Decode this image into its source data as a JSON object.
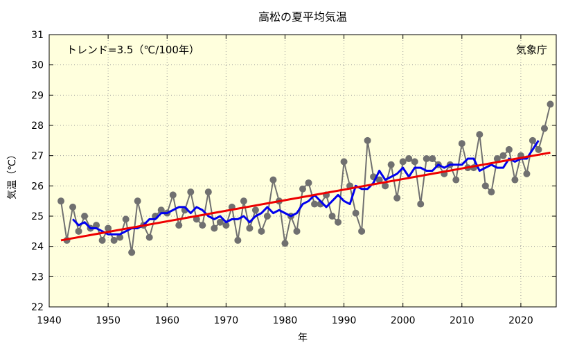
{
  "chart_data": {
    "type": "line",
    "title": "高松の夏平均気温",
    "xlabel": "年",
    "ylabel": "気温（℃）",
    "xlim": [
      1940,
      2026
    ],
    "ylim": [
      22,
      31
    ],
    "xticks": [
      1940,
      1950,
      1960,
      1970,
      1980,
      1990,
      2000,
      2010,
      2020
    ],
    "yticks": [
      22,
      23,
      24,
      25,
      26,
      27,
      28,
      29,
      30,
      31
    ],
    "grid": true,
    "trend_label": "トレンド=3.5（℃/100年）",
    "source_label": "気象庁",
    "colors": {
      "background": "#ffffdd",
      "annual": "#707070",
      "moving_avg": "#0000ee",
      "trend": "#ee0000"
    },
    "series": [
      {
        "kind": "annual",
        "x": [
          1942,
          1943,
          1944,
          1945,
          1946,
          1947,
          1948,
          1949,
          1950,
          1951,
          1952,
          1953,
          1954,
          1955,
          1956,
          1957,
          1958,
          1959,
          1960,
          1961,
          1962,
          1963,
          1964,
          1965,
          1966,
          1967,
          1968,
          1969,
          1970,
          1971,
          1972,
          1973,
          1974,
          1975,
          1976,
          1977,
          1978,
          1979,
          1980,
          1981,
          1982,
          1983,
          1984,
          1985,
          1986,
          1987,
          1988,
          1989,
          1990,
          1991,
          1992,
          1993,
          1994,
          1995,
          1996,
          1997,
          1998,
          1999,
          2000,
          2001,
          2002,
          2003,
          2004,
          2005,
          2006,
          2007,
          2008,
          2009,
          2010,
          2011,
          2012,
          2013,
          2014,
          2015,
          2016,
          2017,
          2018,
          2019,
          2020,
          2021,
          2022,
          2023,
          2024,
          2025
        ],
        "values": [
          25.5,
          24.2,
          25.3,
          24.5,
          25.0,
          24.6,
          24.7,
          24.2,
          24.6,
          24.2,
          24.3,
          24.9,
          23.8,
          25.5,
          24.7,
          24.3,
          25.0,
          25.2,
          25.1,
          25.7,
          24.7,
          25.2,
          25.8,
          24.9,
          24.7,
          25.8,
          24.6,
          24.8,
          24.7,
          25.3,
          24.2,
          25.5,
          24.6,
          25.2,
          24.5,
          25.0,
          26.2,
          25.5,
          24.1,
          25.0,
          24.5,
          25.9,
          26.1,
          25.4,
          25.4,
          25.7,
          25.0,
          24.8,
          26.8,
          26.0,
          25.1,
          24.5,
          27.5,
          26.3,
          26.2,
          26.0,
          26.7,
          25.6,
          26.8,
          26.9,
          26.8,
          25.4,
          26.9,
          26.9,
          26.7,
          26.4,
          26.7,
          26.2,
          27.4,
          26.6,
          26.6,
          27.7,
          26.0,
          25.8,
          26.9,
          27.0,
          27.2,
          26.2,
          27.0,
          26.4,
          27.5,
          27.2,
          27.9,
          28.7
        ]
      },
      {
        "kind": "moving_avg",
        "x": [
          1944,
          1945,
          1946,
          1947,
          1948,
          1949,
          1950,
          1951,
          1952,
          1953,
          1954,
          1955,
          1956,
          1957,
          1958,
          1959,
          1960,
          1961,
          1962,
          1963,
          1964,
          1965,
          1966,
          1967,
          1968,
          1969,
          1970,
          1971,
          1972,
          1973,
          1974,
          1975,
          1976,
          1977,
          1978,
          1979,
          1980,
          1981,
          1982,
          1983,
          1984,
          1985,
          1986,
          1987,
          1988,
          1989,
          1990,
          1991,
          1992,
          1993,
          1994,
          1995,
          1996,
          1997,
          1998,
          1999,
          2000,
          2001,
          2002,
          2003,
          2004,
          2005,
          2006,
          2007,
          2008,
          2009,
          2010,
          2011,
          2012,
          2013,
          2014,
          2015,
          2016,
          2017,
          2018,
          2019,
          2020,
          2021,
          2022,
          2023
        ],
        "values": [
          24.9,
          24.7,
          24.8,
          24.6,
          24.6,
          24.5,
          24.4,
          24.4,
          24.4,
          24.5,
          24.6,
          24.6,
          24.7,
          24.9,
          24.9,
          25.1,
          25.1,
          25.2,
          25.3,
          25.3,
          25.1,
          25.3,
          25.2,
          25.0,
          24.9,
          25.0,
          24.8,
          24.9,
          24.9,
          25.0,
          24.8,
          25.0,
          25.1,
          25.3,
          25.1,
          25.2,
          25.1,
          25.0,
          25.1,
          25.4,
          25.5,
          25.7,
          25.5,
          25.3,
          25.5,
          25.7,
          25.5,
          25.4,
          26.0,
          25.9,
          25.9,
          26.1,
          26.5,
          26.2,
          26.3,
          26.4,
          26.6,
          26.3,
          26.6,
          26.6,
          26.5,
          26.5,
          26.7,
          26.6,
          26.7,
          26.7,
          26.7,
          26.9,
          26.9,
          26.5,
          26.6,
          26.7,
          26.6,
          26.6,
          26.9,
          26.8,
          26.9,
          26.9,
          27.2,
          27.5
        ]
      },
      {
        "kind": "trend",
        "x": [
          1942,
          2025
        ],
        "values": [
          24.2,
          27.1
        ]
      }
    ]
  }
}
